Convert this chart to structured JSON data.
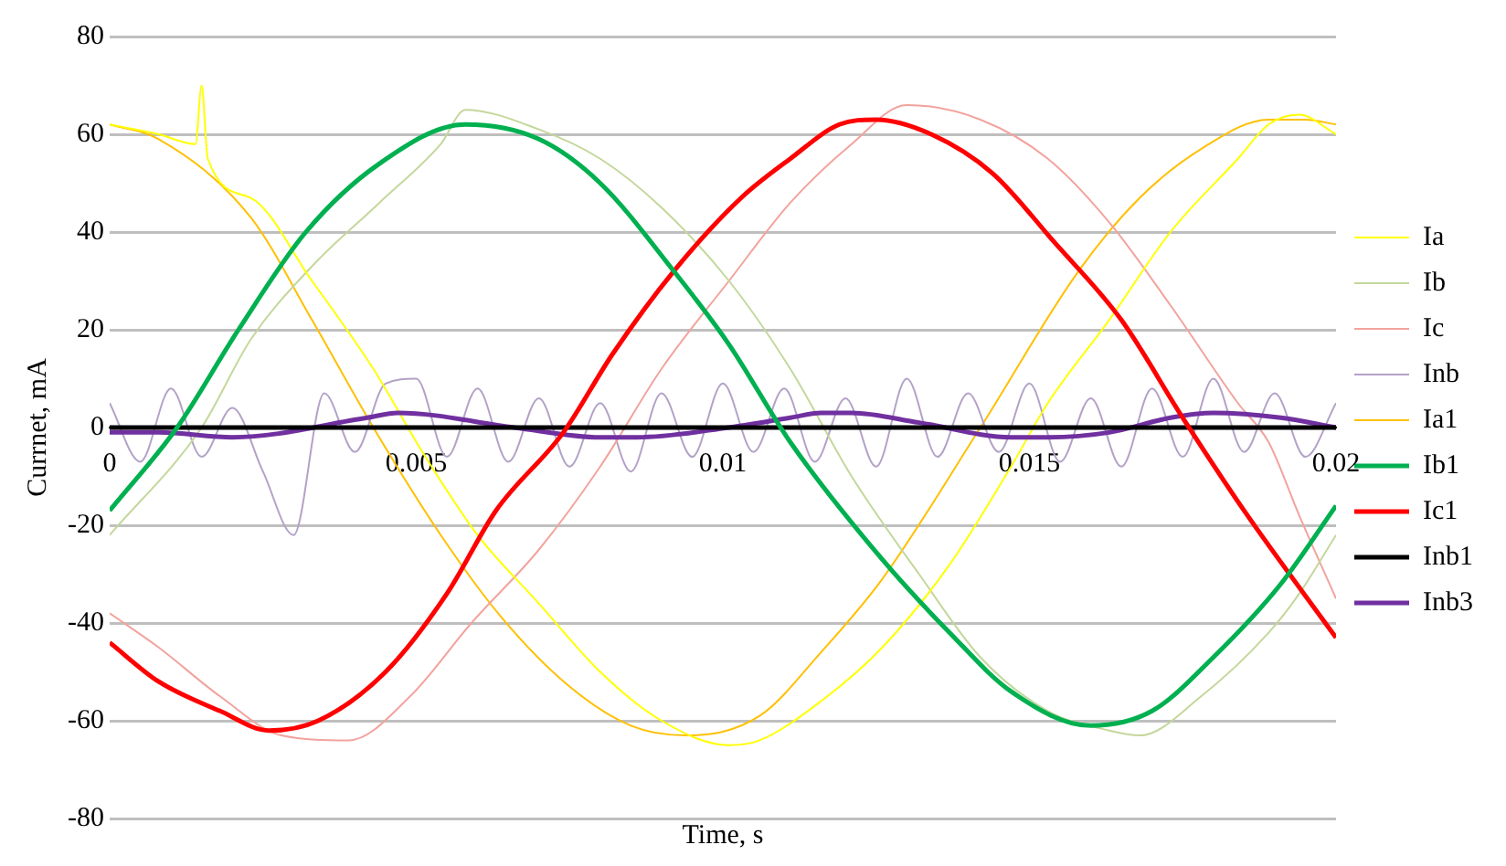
{
  "chart_data": {
    "type": "line",
    "xlabel": "Time, s",
    "ylabel": "Currnet, mA",
    "xlim": [
      0,
      0.02
    ],
    "xticks": [
      0,
      0.005,
      0.01,
      0.015,
      0.02
    ],
    "ylim": [
      -80,
      80
    ],
    "yticks": [
      -80,
      -60,
      -40,
      -20,
      0,
      20,
      40,
      60,
      80
    ],
    "grid": "y",
    "legend": "right",
    "marker": "none",
    "line_style": "solid",
    "series": [
      {
        "name": "Ia",
        "color": "#ffff00",
        "x": [
          0,
          0.0008,
          0.0014,
          0.0015,
          0.0016,
          0.0023,
          0.0033,
          0.0043,
          0.0051,
          0.006,
          0.007,
          0.008,
          0.009,
          0.0101,
          0.0106,
          0.0116,
          0.0126,
          0.0137,
          0.0147,
          0.0153,
          0.0163,
          0.0173,
          0.0184,
          0.0189,
          0.0194,
          0.02
        ],
        "values": [
          62,
          60,
          58,
          70,
          55,
          47,
          30,
          12,
          -5,
          -22,
          -36,
          -50,
          -60,
          -65,
          -64,
          -56,
          -45,
          -28,
          -8,
          5,
          22,
          40,
          55,
          62,
          64,
          60
        ]
      },
      {
        "name": "Ib",
        "color": "#c4d79b",
        "x": [
          0,
          0.0015,
          0.0023,
          0.0033,
          0.0044,
          0.0054,
          0.0058,
          0.007,
          0.008,
          0.009,
          0.0101,
          0.0111,
          0.0121,
          0.0132,
          0.0142,
          0.0153,
          0.0163,
          0.0168,
          0.0178,
          0.0189,
          0.0194,
          0.02
        ],
        "values": [
          -22,
          0,
          18,
          33,
          46,
          58,
          65,
          61,
          55,
          45,
          30,
          12,
          -10,
          -30,
          -47,
          -58,
          -62,
          -63,
          -55,
          -42,
          -34,
          -22
        ]
      },
      {
        "name": "Ic",
        "color": "#f2a39e",
        "x": [
          0,
          0.0008,
          0.0018,
          0.0028,
          0.0039,
          0.0049,
          0.0059,
          0.007,
          0.008,
          0.009,
          0.0101,
          0.0111,
          0.0121,
          0.013,
          0.0142,
          0.0153,
          0.0163,
          0.0173,
          0.0184,
          0.0189,
          0.0194,
          0.02
        ],
        "values": [
          -38,
          -45,
          -55,
          -63,
          -64,
          -55,
          -40,
          -25,
          -8,
          12,
          30,
          46,
          58,
          66,
          63,
          55,
          42,
          25,
          5,
          -3,
          -18,
          -35
        ]
      },
      {
        "name": "Inb",
        "color": "#b3a2c7",
        "x": [
          0,
          0.0005,
          0.001,
          0.0015,
          0.002,
          0.0025,
          0.003,
          0.0035,
          0.004,
          0.0045,
          0.005,
          0.0055,
          0.006,
          0.0065,
          0.007,
          0.0075,
          0.008,
          0.0085,
          0.009,
          0.0095,
          0.01,
          0.0105,
          0.011,
          0.0115,
          0.012,
          0.0125,
          0.013,
          0.0135,
          0.014,
          0.0145,
          0.015,
          0.0155,
          0.016,
          0.0165,
          0.017,
          0.0175,
          0.018,
          0.0185,
          0.019,
          0.0195,
          0.02
        ],
        "values": [
          5,
          -7,
          8,
          -6,
          4,
          -9,
          -22,
          7,
          -5,
          9,
          10,
          -6,
          8,
          -7,
          6,
          -8,
          5,
          -9,
          7,
          -6,
          9,
          -5,
          8,
          -7,
          6,
          -8,
          10,
          -6,
          7,
          -5,
          9,
          -7,
          6,
          -8,
          8,
          -6,
          10,
          -5,
          7,
          -6,
          5
        ]
      },
      {
        "name": "Ia1",
        "color": "#ffc000",
        "x": [
          0,
          0.0008,
          0.0023,
          0.0033,
          0.0043,
          0.0054,
          0.0064,
          0.0075,
          0.0085,
          0.0094,
          0.0106,
          0.0116,
          0.0126,
          0.0142,
          0.0158,
          0.0168,
          0.0178,
          0.0189,
          0.0195,
          0.02
        ],
        "values": [
          62,
          59,
          43,
          22,
          0,
          -22,
          -39,
          -53,
          -61,
          -63,
          -59,
          -46,
          -31,
          0,
          32,
          47,
          57,
          63,
          63,
          62
        ]
      },
      {
        "name": "Ib1",
        "color": "#00b050",
        "x": [
          0,
          0.0011,
          0.0021,
          0.0032,
          0.0044,
          0.0058,
          0.007,
          0.008,
          0.0092,
          0.0101,
          0.0111,
          0.0126,
          0.0137,
          0.0147,
          0.016,
          0.017,
          0.018,
          0.0191,
          0.02
        ],
        "values": [
          -17,
          0,
          20,
          40,
          54,
          62,
          59,
          50,
          32,
          17,
          -3,
          -27,
          -42,
          -54,
          -61,
          -58,
          -47,
          -32,
          -16
        ]
      },
      {
        "name": "Ic1",
        "color": "#ff0000",
        "x": [
          0,
          0.0008,
          0.0018,
          0.0026,
          0.0034,
          0.0045,
          0.0055,
          0.0063,
          0.0074,
          0.0082,
          0.0092,
          0.0103,
          0.0111,
          0.0119,
          0.0125,
          0.0134,
          0.0144,
          0.0154,
          0.0165,
          0.0175,
          0.0185,
          0.02
        ],
        "values": [
          -44,
          -52,
          -58,
          -62,
          -60,
          -50,
          -34,
          -17,
          -1,
          15,
          32,
          47,
          55,
          62,
          63,
          60,
          52,
          38,
          22,
          2,
          -17,
          -43
        ]
      },
      {
        "name": "Inb1",
        "color": "#000000",
        "x": [
          0,
          0.02
        ],
        "values": [
          0,
          0
        ]
      },
      {
        "name": "Inb3",
        "color": "#7030a0",
        "x": [
          0,
          0.0008,
          0.002,
          0.0042,
          0.0047,
          0.0066,
          0.008,
          0.0086,
          0.0101,
          0.0111,
          0.0116,
          0.0121,
          0.0132,
          0.0147,
          0.0153,
          0.0163,
          0.0173,
          0.018,
          0.0191,
          0.02
        ],
        "values": [
          -1,
          -1,
          -2,
          2,
          3,
          0,
          -2,
          -2,
          0,
          2,
          3,
          3,
          1,
          -2,
          -2,
          -1,
          2,
          3,
          2,
          0
        ]
      }
    ]
  }
}
